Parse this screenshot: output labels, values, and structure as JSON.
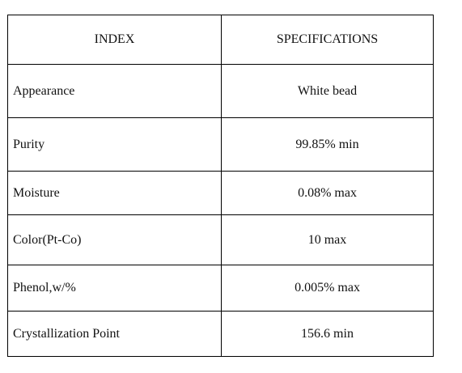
{
  "table": {
    "header": [
      "INDEX",
      "SPECIFICATIONS"
    ],
    "rows": [
      [
        "Appearance",
        "White bead"
      ],
      [
        "Purity",
        "99.85% min"
      ],
      [
        "Moisture",
        "0.08% max"
      ],
      [
        "Color(Pt-Co)",
        "10 max"
      ],
      [
        "Phenol,w/%",
        "0.005% max"
      ],
      [
        "Crystallization Point",
        "156.6 min"
      ]
    ]
  }
}
